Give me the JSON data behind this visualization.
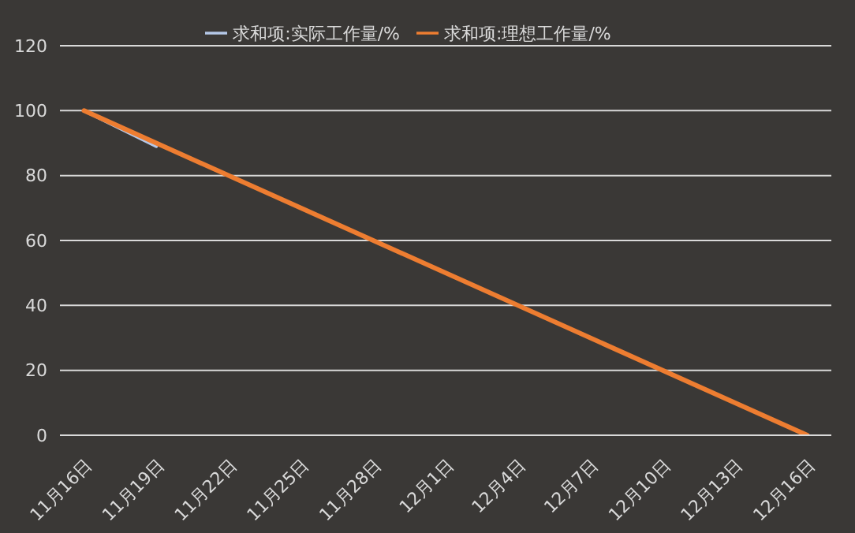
{
  "chart_data": {
    "type": "line",
    "series": [
      {
        "name": "求和项:实际工作量/%",
        "color": "#b4c7e7",
        "x": [
          "--11-16",
          "--11-19"
        ],
        "values": [
          100,
          89
        ]
      },
      {
        "name": "求和项:理想工作量/%",
        "color": "#ed7d31",
        "x": [
          "--11-16",
          "--12-16"
        ],
        "values": [
          100,
          0
        ]
      }
    ],
    "xlim": [
      "--11-15",
      "--12-17"
    ],
    "xticks": [
      {
        "value": "--11-16",
        "label": "11月16日"
      },
      {
        "value": "--11-19",
        "label": "11月19日"
      },
      {
        "value": "--11-22",
        "label": "11月22日"
      },
      {
        "value": "--11-25",
        "label": "11月25日"
      },
      {
        "value": "--11-28",
        "label": "11月28日"
      },
      {
        "value": "--12-01",
        "label": "12月1日"
      },
      {
        "value": "--12-04",
        "label": "12月4日"
      },
      {
        "value": "--12-07",
        "label": "12月7日"
      },
      {
        "value": "--12-10",
        "label": "12月10日"
      },
      {
        "value": "--12-13",
        "label": "12月13日"
      },
      {
        "value": "--12-16",
        "label": "12月16日"
      }
    ],
    "ylim": [
      0,
      120
    ],
    "yticks": [
      0,
      20,
      40,
      60,
      80,
      100,
      120
    ],
    "grid": "y",
    "legend": "top",
    "marker": "none",
    "line_style": "solid"
  }
}
